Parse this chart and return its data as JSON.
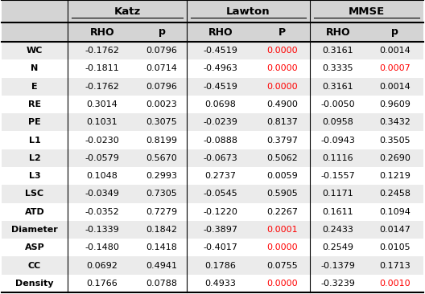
{
  "rows": [
    "WC",
    "N",
    "E",
    "RE",
    "PE",
    "L1",
    "L2",
    "L3",
    "LSC",
    "ATD",
    "Diameter",
    "ASP",
    "CC",
    "Density"
  ],
  "katz_rho": [
    "-0.1762",
    "-0.1811",
    "-0.1762",
    "0.3014",
    "0.1031",
    "-0.0230",
    "-0.0579",
    "0.1048",
    "-0.0349",
    "-0.0352",
    "-0.1339",
    "-0.1480",
    "0.0692",
    "0.1766"
  ],
  "katz_p": [
    "0.0796",
    "0.0714",
    "0.0796",
    "0.0023",
    "0.3075",
    "0.8199",
    "0.5670",
    "0.2993",
    "0.7305",
    "0.7279",
    "0.1842",
    "0.1418",
    "0.4941",
    "0.0788"
  ],
  "katz_p_red": [
    false,
    false,
    false,
    false,
    false,
    false,
    false,
    false,
    false,
    false,
    false,
    false,
    false,
    false
  ],
  "lawton_rho": [
    "-0.4519",
    "-0.4963",
    "-0.4519",
    "0.0698",
    "-0.0239",
    "-0.0888",
    "-0.0673",
    "0.2737",
    "-0.0545",
    "-0.1220",
    "-0.3897",
    "-0.4017",
    "0.1786",
    "0.4933"
  ],
  "lawton_p": [
    "0.0000",
    "0.0000",
    "0.0000",
    "0.4900",
    "0.8137",
    "0.3797",
    "0.5062",
    "0.0059",
    "0.5905",
    "0.2267",
    "0.0001",
    "0.0000",
    "0.0755",
    "0.0000"
  ],
  "lawton_p_red": [
    true,
    true,
    true,
    false,
    false,
    false,
    false,
    false,
    false,
    false,
    true,
    true,
    false,
    true
  ],
  "mmse_rho": [
    "0.3161",
    "0.3335",
    "0.3161",
    "-0.0050",
    "0.0958",
    "-0.0943",
    "0.1116",
    "-0.1557",
    "0.1171",
    "0.1611",
    "0.2433",
    "0.2549",
    "-0.1379",
    "-0.3239"
  ],
  "mmse_p": [
    "0.0014",
    "0.0007",
    "0.0014",
    "0.9609",
    "0.3432",
    "0.3505",
    "0.2690",
    "0.1219",
    "0.2458",
    "0.1094",
    "0.0147",
    "0.0105",
    "0.1713",
    "0.0010"
  ],
  "mmse_p_red": [
    false,
    true,
    false,
    false,
    false,
    false,
    false,
    false,
    false,
    false,
    false,
    false,
    false,
    true
  ],
  "bg_even": "#ebebeb",
  "bg_odd": "#ffffff",
  "bg_header": "#d4d4d4",
  "red_color": "#ff0000",
  "black_color": "#000000"
}
